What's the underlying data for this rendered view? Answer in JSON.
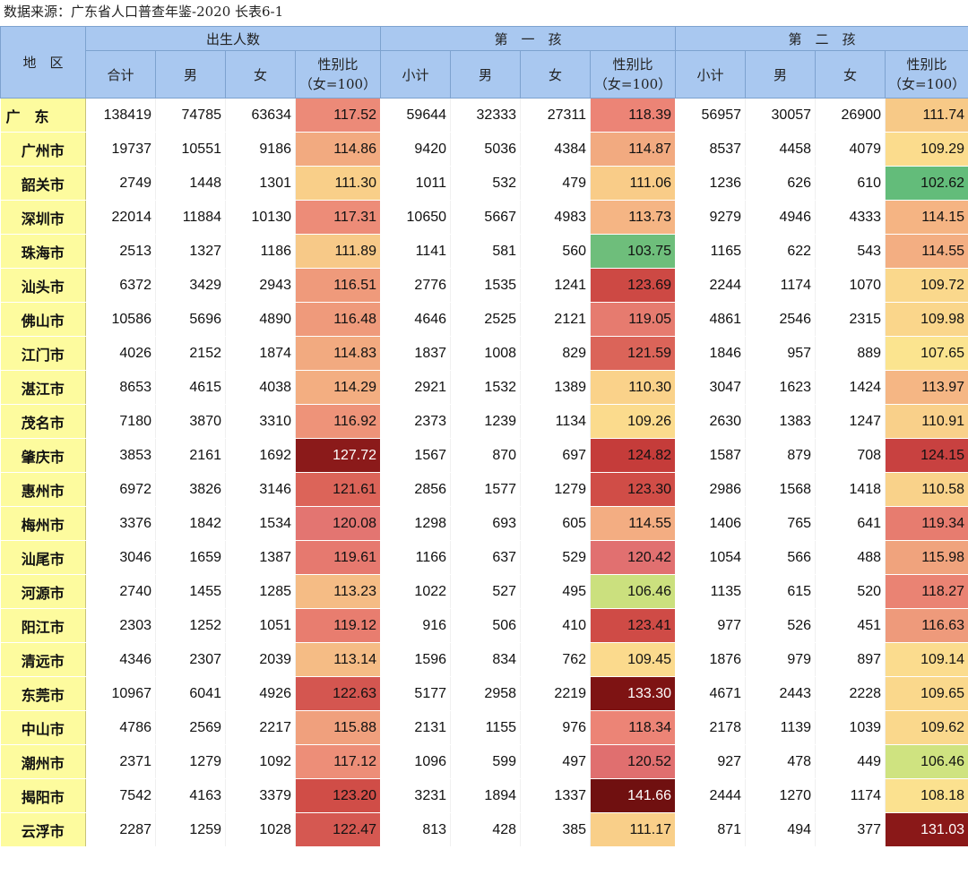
{
  "source_line": "数据来源：广东省人口普查年鉴-2020 长表6-1",
  "header": {
    "region": "地　区",
    "groups": [
      "出生人数",
      "第　一　孩",
      "第　二　孩"
    ],
    "births_cols": [
      "合计",
      "男",
      "女"
    ],
    "child_cols": [
      "小计",
      "男",
      "女"
    ],
    "ratio_line1": "性别比",
    "ratio_line2": "（女=100）"
  },
  "rows": [
    {
      "region": "广　东",
      "v": [
        "138419",
        "74785",
        "63634",
        "117.52",
        "59644",
        "32333",
        "27311",
        "118.39",
        "56957",
        "30057",
        "26900",
        "111.74"
      ],
      "c": [
        "#ec8a78",
        "#ec8476",
        "#f7c987"
      ]
    },
    {
      "region": "广州市",
      "v": [
        "19737",
        "10551",
        "9186",
        "114.86",
        "9420",
        "5036",
        "4384",
        "114.87",
        "8537",
        "4458",
        "4079",
        "109.29"
      ],
      "c": [
        "#f2aa80",
        "#f2aa80",
        "#fbdc8d"
      ]
    },
    {
      "region": "韶关市",
      "v": [
        "2749",
        "1448",
        "1301",
        "111.30",
        "1011",
        "532",
        "479",
        "111.06",
        "1236",
        "626",
        "610",
        "102.62"
      ],
      "c": [
        "#f9cf89",
        "#f9cc88",
        "#63bc7a"
      ]
    },
    {
      "region": "深圳市",
      "v": [
        "22014",
        "11884",
        "10130",
        "117.31",
        "10650",
        "5667",
        "4983",
        "113.73",
        "9279",
        "4946",
        "4333",
        "114.15"
      ],
      "c": [
        "#ed8c78",
        "#f5b584",
        "#f5b483"
      ]
    },
    {
      "region": "珠海市",
      "v": [
        "2513",
        "1327",
        "1186",
        "111.89",
        "1141",
        "581",
        "560",
        "103.75",
        "1165",
        "622",
        "543",
        "114.55"
      ],
      "c": [
        "#f7c988",
        "#6ebe7b",
        "#f3ae82"
      ]
    },
    {
      "region": "汕头市",
      "v": [
        "6372",
        "3429",
        "2943",
        "116.51",
        "2776",
        "1535",
        "1241",
        "123.69",
        "2244",
        "1174",
        "1070",
        "109.72"
      ],
      "c": [
        "#ef9a7b",
        "#cd4944",
        "#fad88c"
      ]
    },
    {
      "region": "佛山市",
      "v": [
        "10586",
        "5696",
        "4890",
        "116.48",
        "4646",
        "2525",
        "2121",
        "119.05",
        "4861",
        "2546",
        "2315",
        "109.98"
      ],
      "c": [
        "#ef9a7b",
        "#e67b6f",
        "#fad68b"
      ]
    },
    {
      "region": "江门市",
      "v": [
        "4026",
        "2152",
        "1874",
        "114.83",
        "1837",
        "1008",
        "829",
        "121.59",
        "1846",
        "957",
        "889",
        "107.65"
      ],
      "c": [
        "#f2aa80",
        "#db6459",
        "#fbe48f"
      ]
    },
    {
      "region": "湛江市",
      "v": [
        "8653",
        "4615",
        "4038",
        "114.29",
        "2921",
        "1532",
        "1389",
        "110.30",
        "3047",
        "1623",
        "1424",
        "113.97"
      ],
      "c": [
        "#f3ae81",
        "#fad28a",
        "#f5b684"
      ]
    },
    {
      "region": "茂名市",
      "v": [
        "7180",
        "3870",
        "3310",
        "116.92",
        "2373",
        "1239",
        "1134",
        "109.26",
        "2630",
        "1383",
        "1247",
        "110.91"
      ],
      "c": [
        "#ee9379",
        "#fbdb8d",
        "#f9d08a"
      ]
    },
    {
      "region": "肇庆市",
      "v": [
        "3853",
        "2161",
        "1692",
        "127.72",
        "1567",
        "870",
        "697",
        "124.82",
        "1587",
        "879",
        "708",
        "124.15"
      ],
      "c": [
        "#8b1a1a",
        "#c53c3a",
        "#c84140"
      ]
    },
    {
      "region": "惠州市",
      "v": [
        "6972",
        "3826",
        "3146",
        "121.61",
        "2856",
        "1577",
        "1279",
        "123.30",
        "2986",
        "1568",
        "1418",
        "110.58"
      ],
      "c": [
        "#dc6459",
        "#d04d47",
        "#f9d28a"
      ]
    },
    {
      "region": "梅州市",
      "v": [
        "3376",
        "1842",
        "1534",
        "120.08",
        "1298",
        "693",
        "605",
        "114.55",
        "1406",
        "765",
        "641",
        "119.34"
      ],
      "c": [
        "#e37571",
        "#f3ad82",
        "#e77c6f"
      ]
    },
    {
      "region": "汕尾市",
      "v": [
        "3046",
        "1659",
        "1387",
        "119.61",
        "1166",
        "637",
        "529",
        "120.42",
        "1054",
        "566",
        "488",
        "115.98"
      ],
      "c": [
        "#e6796f",
        "#e17070",
        "#f0a37d"
      ]
    },
    {
      "region": "河源市",
      "v": [
        "2740",
        "1455",
        "1285",
        "113.23",
        "1022",
        "527",
        "495",
        "106.46",
        "1135",
        "615",
        "520",
        "118.27"
      ],
      "c": [
        "#f5bc85",
        "#cbe07e",
        "#ea8373"
      ]
    },
    {
      "region": "阳江市",
      "v": [
        "2303",
        "1252",
        "1051",
        "119.12",
        "916",
        "506",
        "410",
        "123.41",
        "977",
        "526",
        "451",
        "116.63"
      ],
      "c": [
        "#e87d6f",
        "#cf4b46",
        "#ee9a7b"
      ]
    },
    {
      "region": "清远市",
      "v": [
        "4346",
        "2307",
        "2039",
        "113.14",
        "1596",
        "834",
        "762",
        "109.45",
        "1876",
        "979",
        "897",
        "109.14"
      ],
      "c": [
        "#f5bc85",
        "#fbda8d",
        "#fbdc8e"
      ]
    },
    {
      "region": "东莞市",
      "v": [
        "10967",
        "6041",
        "4926",
        "122.63",
        "5177",
        "2958",
        "2219",
        "133.30",
        "4671",
        "2443",
        "2228",
        "109.65"
      ],
      "c": [
        "#d45650",
        "#7e1313",
        "#fad88c"
      ]
    },
    {
      "region": "中山市",
      "v": [
        "4786",
        "2569",
        "2217",
        "115.88",
        "2131",
        "1155",
        "976",
        "118.34",
        "2178",
        "1139",
        "1039",
        "109.62"
      ],
      "c": [
        "#f0a07d",
        "#ec8476",
        "#fad88c"
      ]
    },
    {
      "region": "潮州市",
      "v": [
        "2371",
        "1279",
        "1092",
        "117.12",
        "1096",
        "599",
        "497",
        "120.52",
        "927",
        "478",
        "449",
        "106.46"
      ],
      "c": [
        "#ed8e78",
        "#e06f6f",
        "#cfe380"
      ]
    },
    {
      "region": "揭阳市",
      "v": [
        "7542",
        "4163",
        "3379",
        "123.20",
        "3231",
        "1894",
        "1337",
        "141.66",
        "2444",
        "1270",
        "1174",
        "108.18"
      ],
      "c": [
        "#d04d47",
        "#701010",
        "#fbe18f"
      ]
    },
    {
      "region": "云浮市",
      "v": [
        "2287",
        "1259",
        "1028",
        "122.47",
        "813",
        "428",
        "385",
        "111.17",
        "871",
        "494",
        "377",
        "131.03"
      ],
      "c": [
        "#d55851",
        "#f9cf89",
        "#8a1818"
      ]
    }
  ]
}
